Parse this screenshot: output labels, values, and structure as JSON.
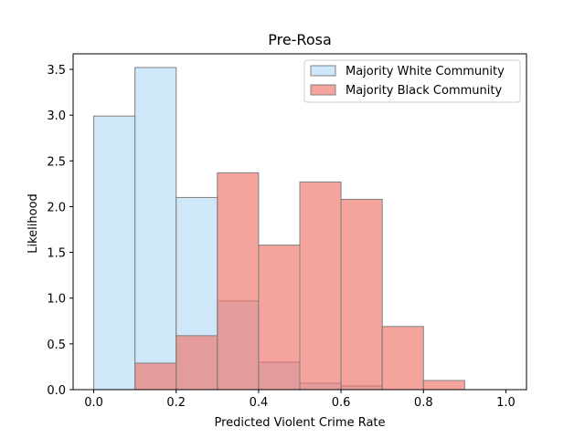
{
  "chart_data": {
    "type": "histogram",
    "title": "Pre-Rosa",
    "xlabel": "Predicted Violent Crime Rate",
    "ylabel": "Likelihood",
    "xlim": [
      -0.05,
      1.05
    ],
    "ylim": [
      0,
      3.67
    ],
    "xticks": [
      0.0,
      0.2,
      0.4,
      0.6,
      0.8,
      1.0
    ],
    "xtick_labels": [
      "0.0",
      "0.2",
      "0.4",
      "0.6",
      "0.8",
      "1.0"
    ],
    "yticks": [
      0.0,
      0.5,
      1.0,
      1.5,
      2.0,
      2.5,
      3.0,
      3.5
    ],
    "ytick_labels": [
      "0.0",
      "0.5",
      "1.0",
      "1.5",
      "2.0",
      "2.5",
      "3.0",
      "3.5"
    ],
    "bin_edges": [
      0.0,
      0.1,
      0.2,
      0.3,
      0.4,
      0.5,
      0.6,
      0.7,
      0.8,
      0.9,
      1.0
    ],
    "legend_position": "top-right",
    "series": [
      {
        "name": "Majority White Community",
        "color": "#aed8f5",
        "opacity": 0.6,
        "values": [
          2.99,
          3.52,
          2.1,
          0.97,
          0.3,
          0.07,
          0.04,
          0.0,
          0.0,
          0.0
        ]
      },
      {
        "name": "Majority Black Community",
        "color": "#f07268",
        "opacity": 0.65,
        "values": [
          0.0,
          0.29,
          0.59,
          2.37,
          1.58,
          2.27,
          2.08,
          0.69,
          0.1,
          0.0
        ]
      }
    ],
    "edge_color": "#808080"
  }
}
